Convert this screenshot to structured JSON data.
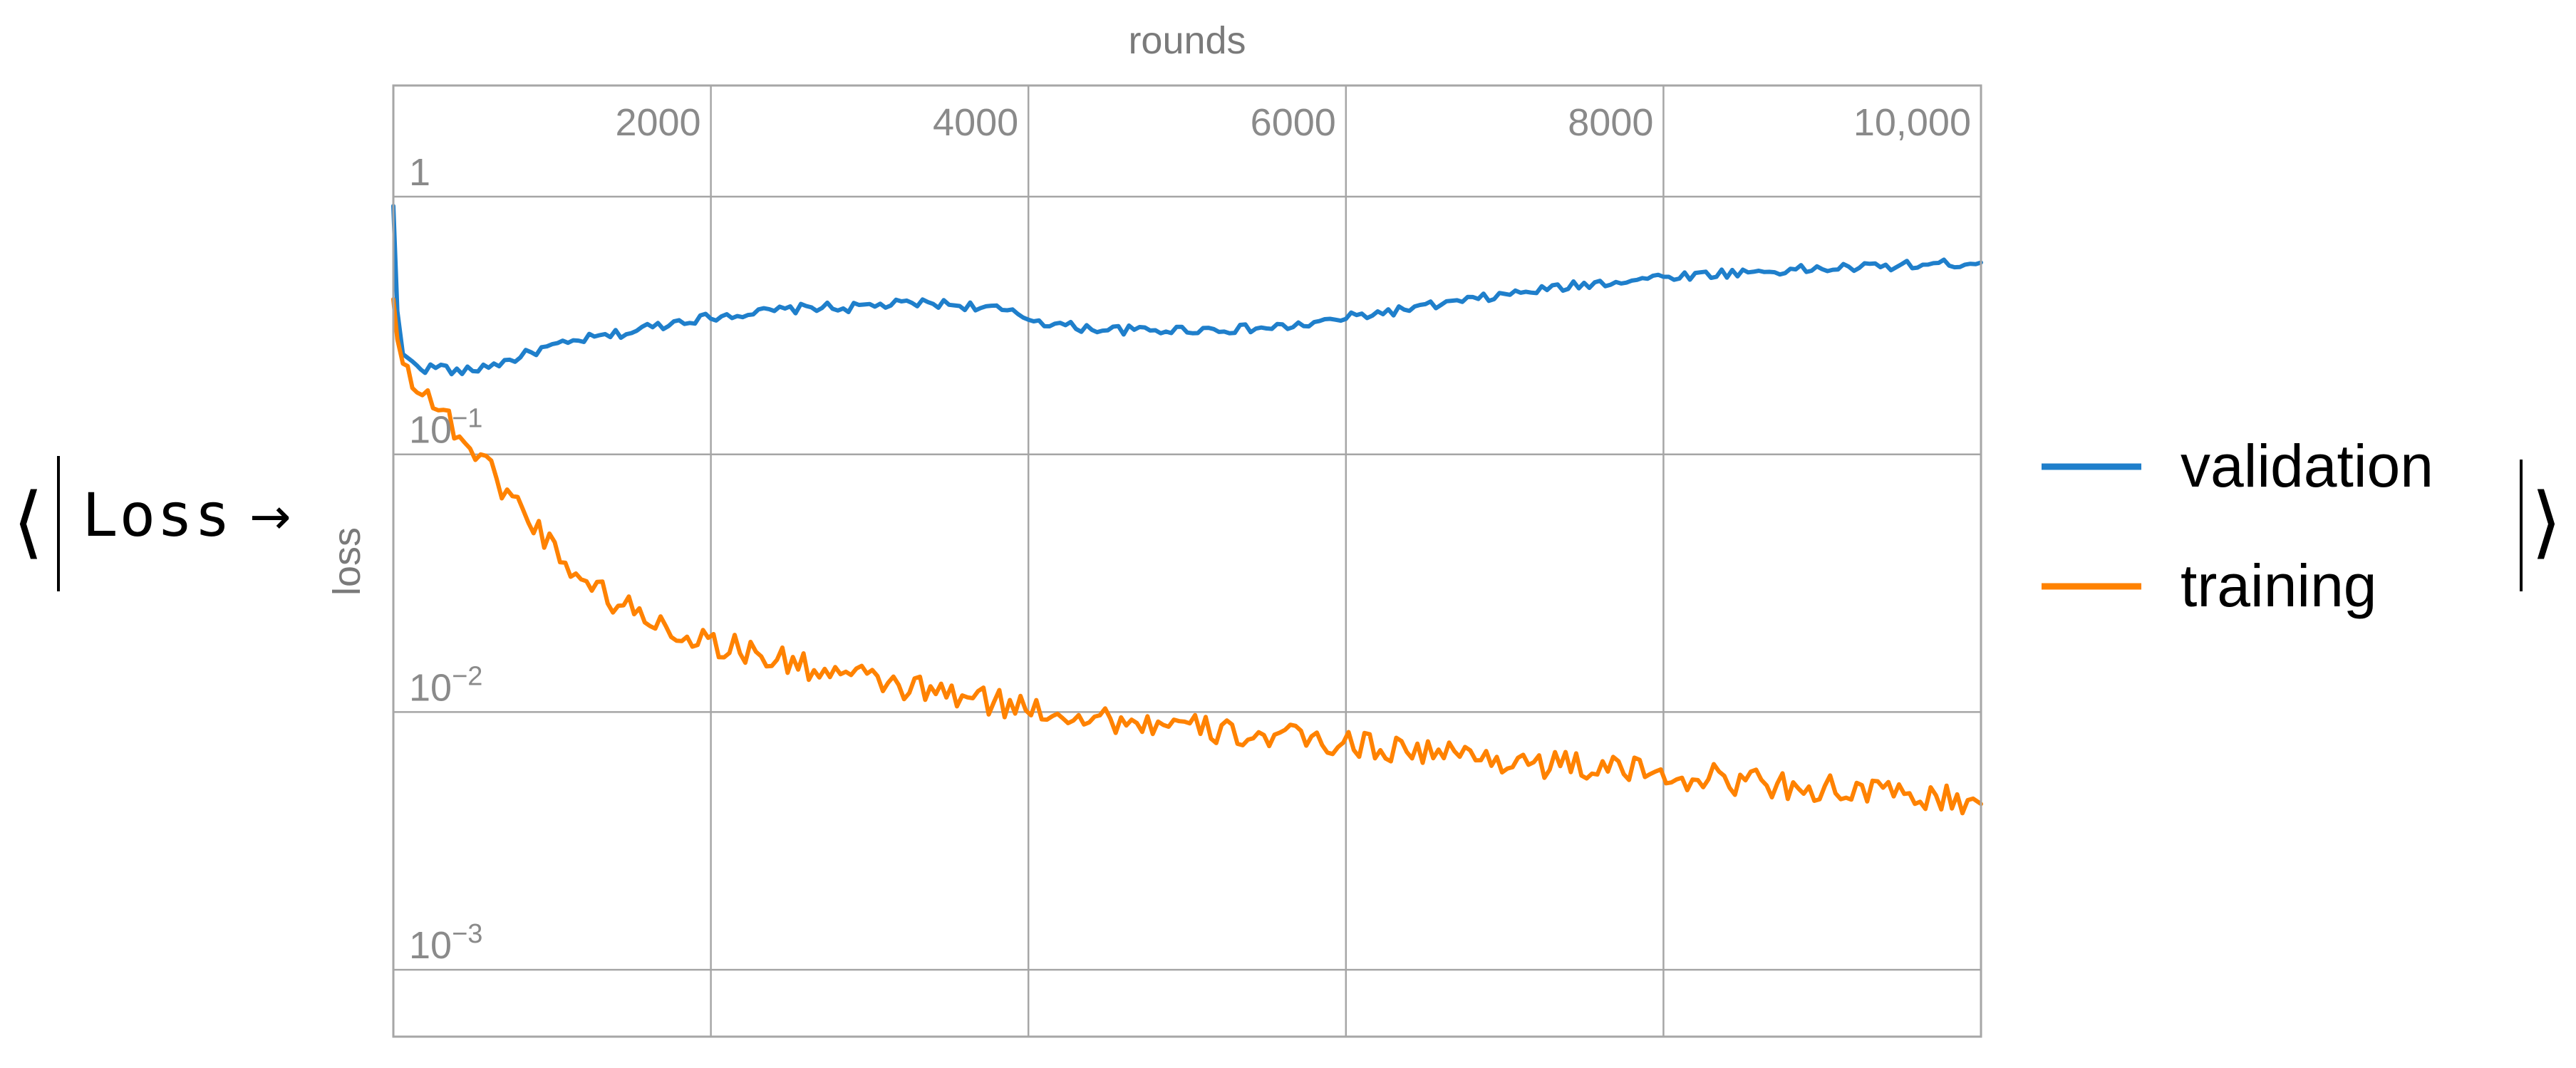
{
  "wrapper": {
    "open": "⟨",
    "close": "⟩",
    "label": "Loss",
    "arrow": "→"
  },
  "chart_data": {
    "type": "line",
    "title": "",
    "xlabel": "rounds",
    "ylabel": "loss",
    "yscale": "log",
    "xlim": [
      0,
      10000
    ],
    "ylim": [
      0.00055,
      2.7
    ],
    "grid": true,
    "legend_position": "right",
    "x_ticks": [
      2000,
      4000,
      6000,
      8000,
      10000
    ],
    "x_tick_labels": [
      "2000",
      "4000",
      "6000",
      "8000",
      "10,000"
    ],
    "y_ticks": [
      1,
      0.1,
      0.01,
      0.001
    ],
    "y_tick_labels": [
      "1",
      "10^-1",
      "10^-2",
      "10^-3"
    ],
    "series": [
      {
        "name": "validation",
        "color": "#1f7fcb",
        "points": [
          [
            0,
            0.92
          ],
          [
            25,
            0.36
          ],
          [
            60,
            0.245
          ],
          [
            120,
            0.225
          ],
          [
            200,
            0.215
          ],
          [
            300,
            0.22
          ],
          [
            400,
            0.208
          ],
          [
            500,
            0.212
          ],
          [
            600,
            0.222
          ],
          [
            700,
            0.228
          ],
          [
            800,
            0.24
          ],
          [
            900,
            0.252
          ],
          [
            1000,
            0.262
          ],
          [
            1100,
            0.268
          ],
          [
            1200,
            0.28
          ],
          [
            1300,
            0.285
          ],
          [
            1400,
            0.292
          ],
          [
            1500,
            0.298
          ],
          [
            1600,
            0.312
          ],
          [
            1700,
            0.318
          ],
          [
            1800,
            0.33
          ],
          [
            1900,
            0.335
          ],
          [
            2000,
            0.34
          ],
          [
            2100,
            0.348
          ],
          [
            2200,
            0.352
          ],
          [
            2300,
            0.355
          ],
          [
            2400,
            0.36
          ],
          [
            2500,
            0.365
          ],
          [
            2600,
            0.37
          ],
          [
            2700,
            0.375
          ],
          [
            2800,
            0.368
          ],
          [
            2900,
            0.372
          ],
          [
            3000,
            0.378
          ],
          [
            3100,
            0.38
          ],
          [
            3200,
            0.383
          ],
          [
            3300,
            0.385
          ],
          [
            3400,
            0.386
          ],
          [
            3500,
            0.382
          ],
          [
            3600,
            0.378
          ],
          [
            3700,
            0.373
          ],
          [
            3800,
            0.366
          ],
          [
            3900,
            0.352
          ],
          [
            4000,
            0.338
          ],
          [
            4100,
            0.326
          ],
          [
            4200,
            0.318
          ],
          [
            4300,
            0.312
          ],
          [
            4400,
            0.308
          ],
          [
            4500,
            0.306
          ],
          [
            4600,
            0.304
          ],
          [
            4700,
            0.303
          ],
          [
            4800,
            0.303
          ],
          [
            4900,
            0.304
          ],
          [
            5000,
            0.305
          ],
          [
            5100,
            0.306
          ],
          [
            5200,
            0.306
          ],
          [
            5300,
            0.306
          ],
          [
            5400,
            0.307
          ],
          [
            5500,
            0.309
          ],
          [
            5600,
            0.312
          ],
          [
            5700,
            0.316
          ],
          [
            5800,
            0.322
          ],
          [
            5900,
            0.33
          ],
          [
            6000,
            0.338
          ],
          [
            6100,
            0.346
          ],
          [
            6200,
            0.353
          ],
          [
            6300,
            0.36
          ],
          [
            6400,
            0.367
          ],
          [
            6500,
            0.374
          ],
          [
            6600,
            0.382
          ],
          [
            6700,
            0.39
          ],
          [
            6800,
            0.398
          ],
          [
            6900,
            0.407
          ],
          [
            7000,
            0.415
          ],
          [
            7100,
            0.424
          ],
          [
            7200,
            0.432
          ],
          [
            7300,
            0.44
          ],
          [
            7400,
            0.448
          ],
          [
            7500,
            0.455
          ],
          [
            7600,
            0.463
          ],
          [
            7700,
            0.47
          ],
          [
            7800,
            0.476
          ],
          [
            7900,
            0.483
          ],
          [
            8000,
            0.488
          ],
          [
            8100,
            0.493
          ],
          [
            8200,
            0.497
          ],
          [
            8300,
            0.501
          ],
          [
            8400,
            0.505
          ],
          [
            8500,
            0.509
          ],
          [
            8600,
            0.512
          ],
          [
            8700,
            0.515
          ],
          [
            8800,
            0.518
          ],
          [
            8900,
            0.522
          ],
          [
            9000,
            0.525
          ],
          [
            9100,
            0.528
          ],
          [
            9200,
            0.531
          ],
          [
            9300,
            0.534
          ],
          [
            9400,
            0.537
          ],
          [
            9500,
            0.54
          ],
          [
            9600,
            0.543
          ],
          [
            9700,
            0.546
          ],
          [
            9800,
            0.549
          ],
          [
            9900,
            0.553
          ],
          [
            10000,
            0.555
          ]
        ]
      },
      {
        "name": "training",
        "color": "#ff8200",
        "points": [
          [
            0,
            0.4
          ],
          [
            25,
            0.28
          ],
          [
            60,
            0.225
          ],
          [
            150,
            0.19
          ],
          [
            250,
            0.16
          ],
          [
            350,
            0.135
          ],
          [
            450,
            0.114
          ],
          [
            550,
            0.096
          ],
          [
            650,
            0.081
          ],
          [
            750,
            0.068
          ],
          [
            850,
            0.057
          ],
          [
            950,
            0.048
          ],
          [
            1050,
            0.041
          ],
          [
            1150,
            0.035
          ],
          [
            1250,
            0.031
          ],
          [
            1350,
            0.028
          ],
          [
            1450,
            0.026
          ],
          [
            1550,
            0.024
          ],
          [
            1650,
            0.0225
          ],
          [
            1750,
            0.021
          ],
          [
            1850,
            0.02
          ],
          [
            1950,
            0.0192
          ],
          [
            2050,
            0.0184
          ],
          [
            2150,
            0.0177
          ],
          [
            2250,
            0.017
          ],
          [
            2350,
            0.0164
          ],
          [
            2450,
            0.0158
          ],
          [
            2550,
            0.0153
          ],
          [
            2650,
            0.0148
          ],
          [
            2750,
            0.0143
          ],
          [
            2850,
            0.0139
          ],
          [
            2950,
            0.0135
          ],
          [
            3050,
            0.0131
          ],
          [
            3150,
            0.0127
          ],
          [
            3250,
            0.0124
          ],
          [
            3350,
            0.0121
          ],
          [
            3450,
            0.0118
          ],
          [
            3550,
            0.0115
          ],
          [
            3650,
            0.0112
          ],
          [
            3750,
            0.011
          ],
          [
            3850,
            0.0107
          ],
          [
            3950,
            0.0105
          ],
          [
            4050,
            0.0103
          ],
          [
            4150,
            0.0101
          ],
          [
            4250,
            0.0099
          ],
          [
            4350,
            0.0097
          ],
          [
            4450,
            0.0095
          ],
          [
            4550,
            0.0093
          ],
          [
            4650,
            0.0092
          ],
          [
            4750,
            0.009
          ],
          [
            4850,
            0.0089
          ],
          [
            4950,
            0.0087
          ],
          [
            5050,
            0.0086
          ],
          [
            5150,
            0.0085
          ],
          [
            5250,
            0.0083
          ],
          [
            5350,
            0.0082
          ],
          [
            5450,
            0.0081
          ],
          [
            5550,
            0.008
          ],
          [
            5650,
            0.0079
          ],
          [
            5750,
            0.0078
          ],
          [
            5850,
            0.0077
          ],
          [
            5950,
            0.0076
          ],
          [
            6050,
            0.0075
          ],
          [
            6150,
            0.0074
          ],
          [
            6250,
            0.0073
          ],
          [
            6350,
            0.0072
          ],
          [
            6450,
            0.0071
          ],
          [
            6550,
            0.007
          ],
          [
            6650,
            0.0069
          ],
          [
            6750,
            0.0068
          ],
          [
            6850,
            0.0067
          ],
          [
            6950,
            0.0066
          ],
          [
            7050,
            0.0065
          ],
          [
            7150,
            0.0064
          ],
          [
            7250,
            0.0063
          ],
          [
            7350,
            0.0062
          ],
          [
            7450,
            0.0062
          ],
          [
            7550,
            0.0061
          ],
          [
            7650,
            0.006
          ],
          [
            7750,
            0.0059
          ],
          [
            7850,
            0.0059
          ],
          [
            7950,
            0.0058
          ],
          [
            8050,
            0.0057
          ],
          [
            8150,
            0.0056
          ],
          [
            8250,
            0.0056
          ],
          [
            8350,
            0.0055
          ],
          [
            8450,
            0.0054
          ],
          [
            8550,
            0.0054
          ],
          [
            8650,
            0.0053
          ],
          [
            8750,
            0.0052
          ],
          [
            8850,
            0.0052
          ],
          [
            8950,
            0.0051
          ],
          [
            9050,
            0.005
          ],
          [
            9150,
            0.005
          ],
          [
            9250,
            0.0049
          ],
          [
            9350,
            0.0048
          ],
          [
            9450,
            0.0048
          ],
          [
            9550,
            0.0047
          ],
          [
            9650,
            0.0047
          ],
          [
            9750,
            0.0046
          ],
          [
            9850,
            0.0045
          ],
          [
            9950,
            0.0044
          ],
          [
            10000,
            0.0044
          ]
        ]
      }
    ]
  }
}
